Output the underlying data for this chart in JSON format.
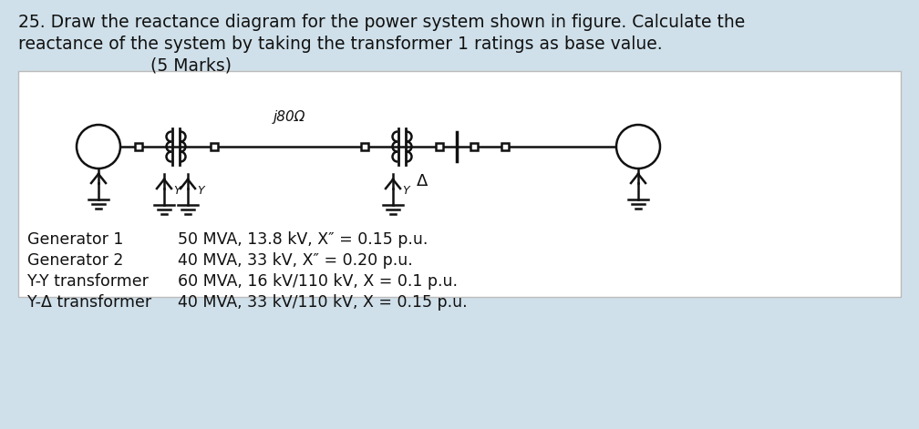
{
  "bg_color": "#cfe0ea",
  "panel_color": "#ffffff",
  "title_line1": "25. Draw the reactance diagram for the power system shown in figure. Calculate the",
  "title_line2": "reactance of the system by taking the transformer 1 ratings as base value.",
  "title_line3": "(5 Marks)",
  "j80_label": "j80Ω",
  "table_items": [
    [
      "Generator 1",
      "50 MVA, 13.8 kV, X″ = 0.15 p.u."
    ],
    [
      "Generator 2",
      "40 MVA, 33 kV, X″ = 0.20 p.u."
    ],
    [
      "Y-Y transformer",
      "60 MVA, 16 kV/110 kV, X = 0.1 p.u."
    ],
    [
      "Y-Δ transformer",
      "40 MVA, 33 kV/110 kV, X = 0.15 p.u."
    ]
  ],
  "text_color": "#111111",
  "lc": "#111111",
  "title_fontsize": 13.5,
  "table_fontsize": 12.5
}
